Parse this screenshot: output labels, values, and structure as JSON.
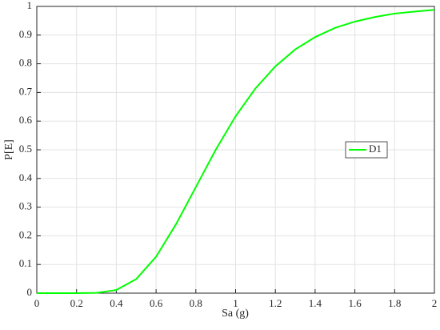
{
  "chart_data": {
    "type": "line",
    "x_label": "Sa (g)",
    "y_label": "P[E]",
    "x": [
      0,
      0.1,
      0.2,
      0.3,
      0.4,
      0.5,
      0.6,
      0.7,
      0.8,
      0.9,
      1.0,
      1.1,
      1.2,
      1.3,
      1.4,
      1.5,
      1.6,
      1.7,
      1.8,
      1.9,
      2.0
    ],
    "series": [
      {
        "name": "D1",
        "color": "#00ff00",
        "values": [
          0,
          0,
          0,
          0.001,
          0.011,
          0.049,
          0.127,
          0.24,
          0.37,
          0.5,
          0.617,
          0.714,
          0.791,
          0.85,
          0.893,
          0.925,
          0.947,
          0.963,
          0.975,
          0.982,
          0.988
        ]
      }
    ],
    "xlim": [
      0,
      2
    ],
    "ylim": [
      0,
      1
    ],
    "xticks": [
      0,
      0.2,
      0.4,
      0.6,
      0.8,
      1,
      1.2,
      1.4,
      1.6,
      1.8,
      2
    ],
    "yticks": [
      0,
      0.1,
      0.2,
      0.3,
      0.4,
      0.5,
      0.6,
      0.7,
      0.8,
      0.9,
      1
    ],
    "grid": true,
    "legend_location": "right"
  }
}
